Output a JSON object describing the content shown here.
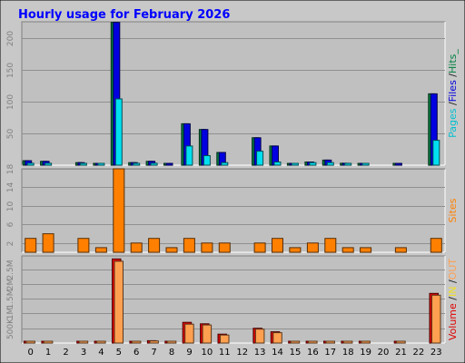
{
  "chart_data": {
    "title": "Hourly usage for February 2026",
    "type": "bar",
    "categories": [
      "0",
      "1",
      "2",
      "3",
      "4",
      "5",
      "6",
      "7",
      "8",
      "9",
      "10",
      "11",
      "12",
      "13",
      "14",
      "15",
      "16",
      "17",
      "18",
      "19",
      "20",
      "21",
      "22",
      "23"
    ],
    "panels": [
      {
        "id": "hits",
        "ylim": [
          0,
          225
        ],
        "yticks": [
          50,
          100,
          150,
          200
        ],
        "right_label_parts": [
          {
            "text": "Pages",
            "color": "#00c0d0"
          },
          {
            "text": " /",
            "color": "#1a1a1a"
          },
          {
            "text": "Files",
            "color": "#0000e0"
          },
          {
            "text": " /",
            "color": "#1a1a1a"
          },
          {
            "text": "Hits_",
            "color": "#008040"
          }
        ],
        "series": [
          {
            "name": "Hits",
            "color": "#008040",
            "values": [
              7,
              6,
              0,
              4,
              2,
              224,
              4,
              6,
              2,
              65,
              56,
              20,
              0,
              43,
              30,
              2,
              5,
              8,
              3,
              2,
              0,
              1,
              0,
              112
            ]
          },
          {
            "name": "Files",
            "color": "#0000e0",
            "values": [
              7,
              6,
              0,
              4,
              2,
              224,
              4,
              6,
              2,
              65,
              56,
              20,
              0,
              43,
              30,
              2,
              5,
              8,
              3,
              2,
              0,
              1,
              0,
              112
            ]
          },
          {
            "name": "Pages",
            "color": "#00e0f0",
            "values": [
              3,
              3,
              0,
              1,
              1,
              104,
              2,
              3,
              0,
              30,
              15,
              4,
              0,
              22,
              5,
              1,
              4,
              4,
              1,
              1,
              0,
              0,
              0,
              39
            ]
          }
        ]
      },
      {
        "id": "sites",
        "ylim": [
          0,
          18
        ],
        "yticks": [
          2,
          6,
          10,
          14,
          18
        ],
        "right_label_parts": [
          {
            "text": "Sites",
            "color": "#ff8000"
          }
        ],
        "series": [
          {
            "name": "Sites",
            "color": "#ff8000",
            "values": [
              3,
              4,
              0,
              3,
              1,
              18,
              2,
              3,
              1,
              3,
              2,
              2,
              0,
              2,
              3,
              1,
              2,
              3,
              1,
              1,
              0,
              1,
              0,
              3
            ]
          }
        ]
      },
      {
        "id": "volume",
        "ylim": [
          0,
          2950000
        ],
        "yticks": [
          500000,
          1000000,
          1500000,
          2000000,
          2500000
        ],
        "yticklabels": [
          "500K",
          "1M",
          "1.5M",
          "2M",
          "2.5M"
        ],
        "right_label_parts": [
          {
            "text": "Volume",
            "color": "#e00000"
          },
          {
            "text": " /",
            "color": "#1a1a1a"
          },
          {
            "text": "IN",
            "color": "#f0e020"
          },
          {
            "text": " /",
            "color": "#1a1a1a"
          },
          {
            "text": "OUT",
            "color": "#ffa050"
          }
        ],
        "series": [
          {
            "name": "Volume",
            "color": "#e00000",
            "values": [
              50000,
              50000,
              0,
              40000,
              40000,
              2850000,
              40000,
              80000,
              40000,
              700000,
              650000,
              300000,
              0,
              500000,
              380000,
              20000,
              40000,
              60000,
              30000,
              20000,
              0,
              20000,
              0,
              1680000
            ]
          },
          {
            "name": "OUT",
            "color": "#ffa050",
            "values": [
              40000,
              40000,
              0,
              30000,
              30000,
              2770000,
              30000,
              70000,
              30000,
              640000,
              610000,
              270000,
              0,
              470000,
              350000,
              10000,
              30000,
              50000,
              20000,
              10000,
              0,
              10000,
              0,
              1620000
            ]
          }
        ]
      }
    ]
  }
}
